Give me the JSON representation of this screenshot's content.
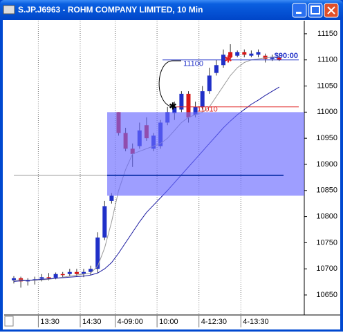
{
  "window_title": "S.JP.J6963 - ROHM COMPANY LIMITED, 10 Min",
  "chart_data": {
    "type": "candlestick",
    "categories": [
      null,
      null,
      null,
      null,
      "13:30",
      null,
      null,
      null,
      null,
      null,
      "14:30",
      null,
      null,
      null,
      null,
      "4-09:00",
      null,
      null,
      null,
      null,
      null,
      "10:00",
      null,
      null,
      null,
      null,
      null,
      "4-12:30",
      null,
      null,
      null,
      null,
      null,
      "4-13:30",
      null,
      null,
      null,
      null,
      null
    ],
    "open": [
      10678,
      10682,
      10676,
      10678,
      10681,
      10684,
      10683,
      10690,
      10690,
      10694,
      10690,
      10694,
      10700,
      10760,
      10830,
      11000,
      10960,
      10930,
      10935,
      10975,
      10930,
      10935,
      10980,
      10998,
      11005,
      11035,
      10995,
      11010,
      11040,
      11075,
      11090,
      11115,
      11108,
      11115,
      11108,
      11110,
      11108,
      11102,
      11105
    ],
    "high": [
      10686,
      10685,
      10682,
      10685,
      10690,
      10692,
      10693,
      10694,
      10700,
      10700,
      10700,
      10706,
      10770,
      10830,
      10845,
      11000,
      10970,
      10940,
      10980,
      10990,
      10960,
      10985,
      11010,
      11020,
      11040,
      11040,
      11020,
      11050,
      11085,
      11100,
      11120,
      11130,
      11118,
      11120,
      11118,
      11120,
      11112,
      11110,
      11108
    ],
    "low": [
      10672,
      10664,
      10668,
      10670,
      10676,
      10678,
      10680,
      10684,
      10686,
      10686,
      10684,
      10688,
      10692,
      10755,
      10825,
      10955,
      10925,
      10895,
      10930,
      10945,
      10925,
      10930,
      10975,
      10985,
      11000,
      10980,
      10990,
      11005,
      11035,
      11070,
      11085,
      11100,
      11105,
      11105,
      11105,
      11105,
      11095,
      11098,
      11098
    ],
    "close": [
      10682,
      10676,
      10678,
      10680,
      10684,
      10682,
      10690,
      10688,
      10694,
      10690,
      10694,
      10700,
      10760,
      10820,
      10840,
      10960,
      10930,
      10920,
      10965,
      10950,
      10955,
      10980,
      11000,
      11010,
      11035,
      10990,
      11010,
      11040,
      11070,
      11090,
      11110,
      11105,
      11115,
      11110,
      11112,
      11115,
      11102,
      11106,
      11100
    ],
    "up_color": "#2030c8",
    "down_color": "#d81818",
    "series": [
      {
        "color": "#999999",
        "values": [
          10678,
          10679,
          10678,
          10678,
          10679,
          10680,
          10682,
          10684,
          10686,
          10688,
          10690,
          10692,
          10705,
          10740,
          10790,
          10850,
          10890,
          10920,
          10925,
          10930,
          10935,
          10940,
          10950,
          10965,
          10980,
          10990,
          10995,
          11000,
          11010,
          11030,
          11050,
          11070,
          11085,
          11095,
          11100,
          11102,
          11104,
          11105,
          11105
        ]
      },
      {
        "color": "#1a1aa0",
        "values": [
          10676,
          10677,
          10678,
          10679,
          10680,
          10681,
          10682,
          10683,
          10684,
          10685,
          10686,
          10688,
          10692,
          10700,
          10712,
          10730,
          10750,
          10770,
          10790,
          10808,
          10822,
          10836,
          10850,
          10865,
          10880,
          10895,
          10910,
          10925,
          10940,
          10955,
          10970,
          10983,
          10995,
          11005,
          11015,
          11023,
          11032,
          11040,
          11048
        ]
      }
    ],
    "ylim": [
      10613,
      11175
    ],
    "yticks": [
      10650,
      10700,
      10750,
      10800,
      10850,
      10900,
      10950,
      11000,
      11050,
      11100,
      11150
    ],
    "price_lines": [
      {
        "value": 11100,
        "color": "#2030c8"
      },
      {
        "value": 11010,
        "color": "#e02020"
      }
    ],
    "reference_line": {
      "value": 10879,
      "color": "#999999"
    },
    "zone": {
      "from": 10840,
      "to": 11000,
      "color": "#6a6aff"
    },
    "corner_text": "$90:00"
  }
}
